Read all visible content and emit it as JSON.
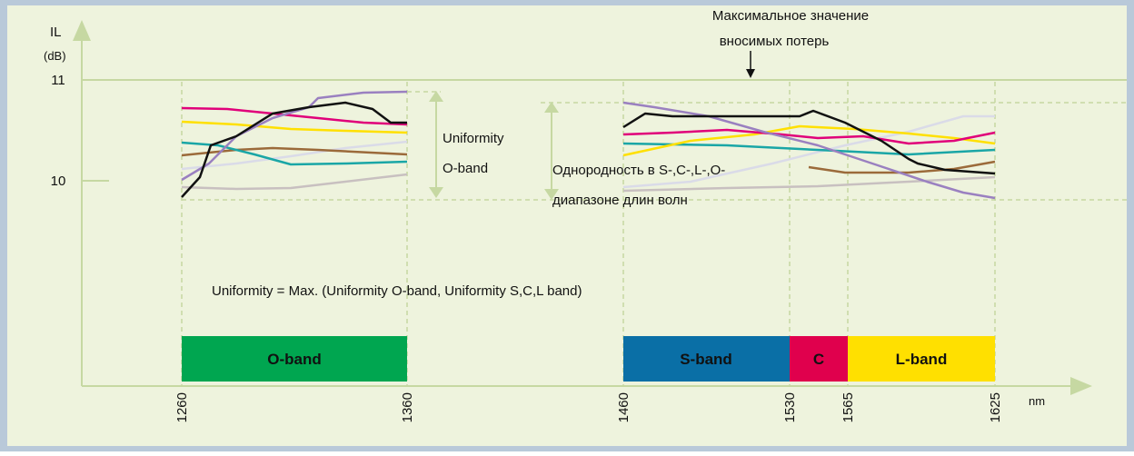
{
  "axes": {
    "y_title": "IL",
    "y_unit": "(dB)",
    "y_labels": [
      "11",
      "10"
    ],
    "x_unit": "nm",
    "x_labels": [
      "1260",
      "1360",
      "1460",
      "1530",
      "1565",
      "1625"
    ]
  },
  "annotations": {
    "max_loss": [
      "Максимальное значение",
      "вносимых потерь"
    ],
    "uniformity_o": [
      "Uniformity",
      "O-band"
    ],
    "uniformity_all": [
      "Однородность в S-,C-,L-,O-",
      "диапазоне длин волн"
    ],
    "formula": "Uniformity = Max. (Uniformity O-band, Uniformity S,C,L band)"
  },
  "bands": [
    "O-band",
    "S-band",
    "C",
    "L-band"
  ]
}
